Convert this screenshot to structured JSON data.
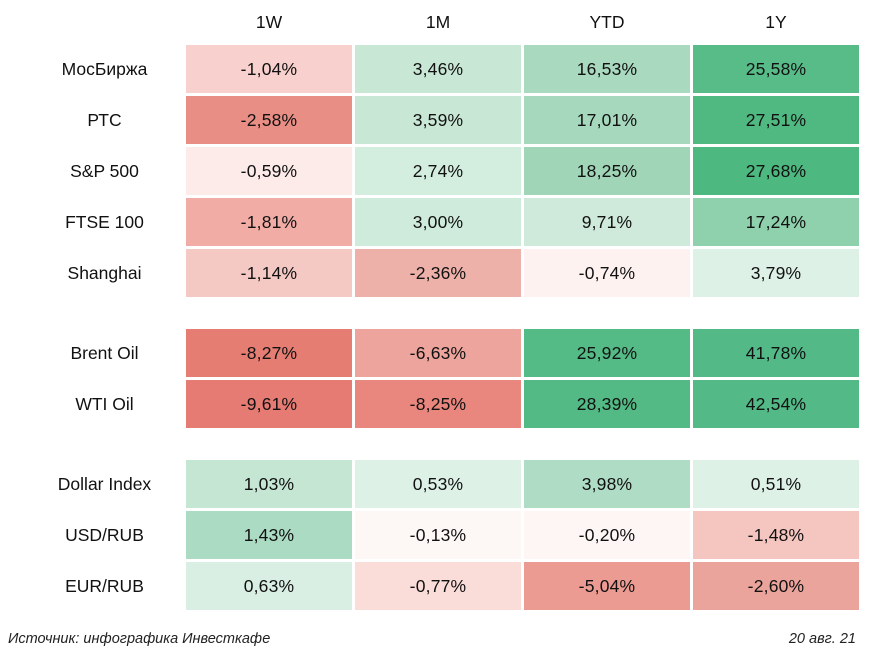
{
  "chart_data": {
    "type": "heatmap",
    "title": "",
    "columns": [
      "1W",
      "1M",
      "YTD",
      "1Y"
    ],
    "unit": "percent",
    "decimal_separator": ",",
    "legend_position": "none",
    "grid": false,
    "groups": [
      {
        "rows": [
          {
            "label": "МосБиржа",
            "values": [
              -1.04,
              3.46,
              16.53,
              25.58
            ]
          },
          {
            "label": "РТС",
            "values": [
              -2.58,
              3.59,
              17.01,
              27.51
            ]
          },
          {
            "label": "S&P 500",
            "values": [
              -0.59,
              2.74,
              18.25,
              27.68
            ]
          },
          {
            "label": "FTSE 100",
            "values": [
              -1.81,
              3.0,
              9.71,
              17.24
            ]
          },
          {
            "label": "Shanghai",
            "values": [
              -1.14,
              -2.36,
              -0.74,
              3.79
            ]
          }
        ]
      },
      {
        "rows": [
          {
            "label": "Brent Oil",
            "values": [
              -8.27,
              -6.63,
              25.92,
              41.78
            ]
          },
          {
            "label": "WTI Oil",
            "values": [
              -9.61,
              -8.25,
              28.39,
              42.54
            ]
          }
        ]
      },
      {
        "rows": [
          {
            "label": "Dollar Index",
            "values": [
              1.03,
              0.53,
              3.98,
              0.51
            ]
          },
          {
            "label": "USD/RUB",
            "values": [
              1.43,
              -0.13,
              -0.2,
              -1.48
            ]
          },
          {
            "label": "EUR/RUB",
            "values": [
              0.63,
              -0.77,
              -5.04,
              -2.6
            ]
          }
        ]
      }
    ],
    "colors": {
      "negative_max": "#e57b72",
      "neutral": "#fdfdfd",
      "positive_max": "#4db87f"
    }
  },
  "table": {
    "columns": [
      "1W",
      "1M",
      "YTD",
      "1Y"
    ],
    "groups": [
      {
        "rows": [
          {
            "label": "МосБиржа",
            "cells": [
              {
                "text": "-1,04%",
                "bg": "#f8d0cd"
              },
              {
                "text": "3,46%",
                "bg": "#c9e7d5"
              },
              {
                "text": "16,53%",
                "bg": "#a9d9bf"
              },
              {
                "text": "25,58%",
                "bg": "#58bc89"
              }
            ]
          },
          {
            "label": "РТС",
            "cells": [
              {
                "text": "-2,58%",
                "bg": "#e88e85"
              },
              {
                "text": "3,59%",
                "bg": "#c9e7d5"
              },
              {
                "text": "17,01%",
                "bg": "#a6d8bd"
              },
              {
                "text": "27,51%",
                "bg": "#50b982"
              }
            ]
          },
          {
            "label": "S&P 500",
            "cells": [
              {
                "text": "-0,59%",
                "bg": "#fcebe9"
              },
              {
                "text": "2,74%",
                "bg": "#d3edde"
              },
              {
                "text": "18,25%",
                "bg": "#a0d5b7"
              },
              {
                "text": "27,68%",
                "bg": "#4db87f"
              }
            ]
          },
          {
            "label": "FTSE 100",
            "cells": [
              {
                "text": "-1,81%",
                "bg": "#f2aca6"
              },
              {
                "text": "3,00%",
                "bg": "#cfebdb"
              },
              {
                "text": "9,71%",
                "bg": "#cfe9da"
              },
              {
                "text": "17,24%",
                "bg": "#8fd0ad"
              }
            ]
          },
          {
            "label": "Shanghai",
            "cells": [
              {
                "text": "-1,14%",
                "bg": "#f4c9c4"
              },
              {
                "text": "-2,36%",
                "bg": "#eeb1aa"
              },
              {
                "text": "-0,74%",
                "bg": "#fdf2f0"
              },
              {
                "text": "3,79%",
                "bg": "#ddf1e6"
              }
            ]
          }
        ]
      },
      {
        "rows": [
          {
            "label": "Brent Oil",
            "cells": [
              {
                "text": "-8,27%",
                "bg": "#e57d73"
              },
              {
                "text": "-6,63%",
                "bg": "#eda49c"
              },
              {
                "text": "25,92%",
                "bg": "#54ba86"
              },
              {
                "text": "41,78%",
                "bg": "#52b987"
              }
            ]
          },
          {
            "label": "WTI Oil",
            "cells": [
              {
                "text": "-9,61%",
                "bg": "#e57b72"
              },
              {
                "text": "-8,25%",
                "bg": "#e9867d"
              },
              {
                "text": "28,39%",
                "bg": "#53ba85"
              },
              {
                "text": "42,54%",
                "bg": "#52b987"
              }
            ]
          }
        ]
      },
      {
        "rows": [
          {
            "label": "Dollar Index",
            "cells": [
              {
                "text": "1,03%",
                "bg": "#c4e6d3"
              },
              {
                "text": "0,53%",
                "bg": "#def1e7"
              },
              {
                "text": "3,98%",
                "bg": "#aedcc4"
              },
              {
                "text": "0,51%",
                "bg": "#def1e7"
              }
            ]
          },
          {
            "label": "USD/RUB",
            "cells": [
              {
                "text": "1,43%",
                "bg": "#abdbc2"
              },
              {
                "text": "-0,13%",
                "bg": "#fdf7f6"
              },
              {
                "text": "-0,20%",
                "bg": "#fdf6f5"
              },
              {
                "text": "-1,48%",
                "bg": "#f5c5c0"
              }
            ]
          },
          {
            "label": "EUR/RUB",
            "cells": [
              {
                "text": "0,63%",
                "bg": "#d9efe3"
              },
              {
                "text": "-0,77%",
                "bg": "#fadcd8"
              },
              {
                "text": "-5,04%",
                "bg": "#ec9b93"
              },
              {
                "text": "-2,60%",
                "bg": "#eba49c"
              }
            ]
          }
        ]
      }
    ]
  },
  "footer": {
    "source": "Источник: инфографика Инвесткафе",
    "date": "20 авг. 21"
  }
}
